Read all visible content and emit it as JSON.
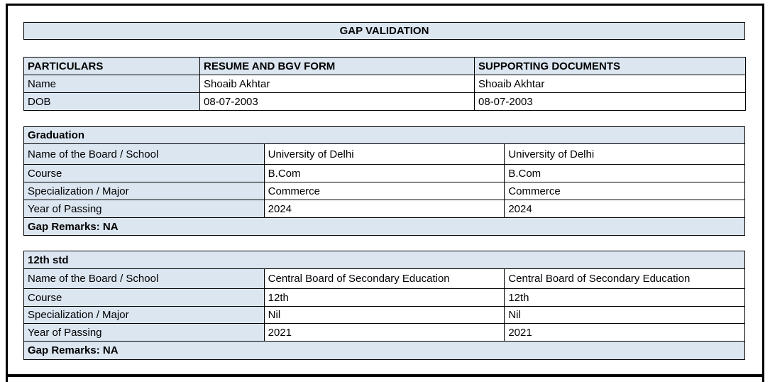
{
  "page": {
    "title": "GAP VALIDATION"
  },
  "colors": {
    "header_fill": "#dce6f1",
    "border": "#000000",
    "page_background": "#ffffff",
    "text": "#000000"
  },
  "identity_table": {
    "headers": [
      "PARTICULARS",
      "RESUME AND BGV FORM",
      "SUPPORTING DOCUMENTS"
    ],
    "rows": [
      {
        "label": "Name",
        "resume": "Shoaib Akhtar",
        "supporting": "Shoaib Akhtar"
      },
      {
        "label": "DOB",
        "resume": "08-07-2003",
        "supporting": "08-07-2003"
      }
    ]
  },
  "sections": [
    {
      "title": "Graduation",
      "rows": [
        {
          "label": "Name of the Board / School",
          "resume": "University of Delhi",
          "supporting": "University of Delhi"
        },
        {
          "label": "Course",
          "resume": "B.Com",
          "supporting": "B.Com"
        },
        {
          "label": "Specialization / Major",
          "resume": "Commerce",
          "supporting": "Commerce"
        },
        {
          "label": "Year of Passing",
          "resume": "2024",
          "supporting": "2024"
        }
      ],
      "gap_remarks": "Gap Remarks: NA"
    },
    {
      "title": "12th std",
      "rows": [
        {
          "label": "Name of the Board / School",
          "resume": "Central Board of Secondary Education",
          "supporting": "Central Board of Secondary Education"
        },
        {
          "label": "Course",
          "resume": "12th",
          "supporting": "12th"
        },
        {
          "label": "Specialization / Major",
          "resume": "Nil",
          "supporting": "Nil"
        },
        {
          "label": "Year of Passing",
          "resume": "2021",
          "supporting": "2021"
        }
      ],
      "gap_remarks": "Gap Remarks: NA"
    }
  ]
}
